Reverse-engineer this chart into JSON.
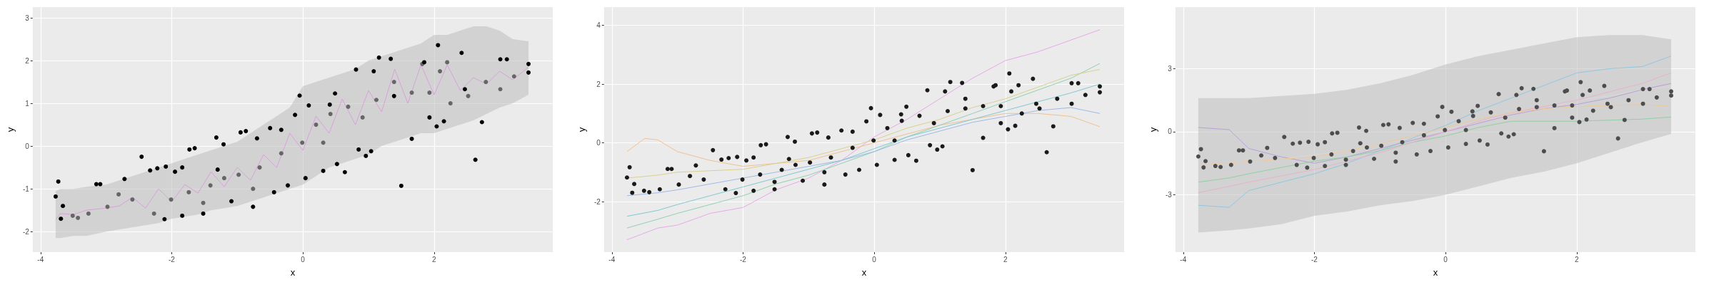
{
  "chart_data": [
    {
      "type": "scatter",
      "xlabel": "x",
      "ylabel": "y",
      "xlim": [
        -4.12,
        3.81
      ],
      "ylim": [
        -2.48,
        3.25
      ],
      "xticks": [
        -4,
        -2,
        0,
        2
      ],
      "yticks": [
        -2,
        -1,
        0,
        1,
        2,
        3
      ],
      "grid": true,
      "series": [
        {
          "type": "line",
          "color": "#d8a0dc",
          "x": [
            -3.77,
            -3.7,
            -3.5,
            -3.3,
            -3.0,
            -2.8,
            -2.6,
            -2.4,
            -2.2,
            -2.0,
            -1.8,
            -1.6,
            -1.4,
            -1.2,
            -1.0,
            -0.8,
            -0.6,
            -0.4,
            -0.2,
            0.0,
            0.2,
            0.4,
            0.6,
            0.8,
            1.0,
            1.2,
            1.4,
            1.6,
            1.8,
            2.0,
            2.2,
            2.4,
            2.6,
            2.8,
            3.0,
            3.2,
            3.44
          ],
          "values": [
            -1.72,
            -1.58,
            -1.6,
            -1.5,
            -1.45,
            -1.4,
            -1.2,
            -1.45,
            -1.0,
            -1.3,
            -0.9,
            -1.1,
            -0.6,
            -0.95,
            -0.5,
            -0.8,
            -0.2,
            -0.5,
            0.3,
            -0.1,
            0.7,
            0.3,
            1.1,
            0.5,
            1.3,
            0.8,
            1.8,
            1.0,
            1.9,
            1.2,
            1.9,
            1.3,
            1.6,
            1.45,
            1.75,
            1.55,
            1.85
          ],
          "lower": [
            -2.15,
            -2.15,
            -2.1,
            -2.1,
            -2.0,
            -1.95,
            -1.9,
            -1.85,
            -1.8,
            -1.7,
            -1.65,
            -1.6,
            -1.5,
            -1.45,
            -1.4,
            -1.3,
            -1.2,
            -1.1,
            -1.0,
            -0.9,
            -0.7,
            -0.5,
            -0.4,
            -0.3,
            -0.2,
            0.0,
            0.1,
            0.2,
            0.3,
            0.3,
            0.4,
            0.5,
            0.6,
            0.75,
            0.9,
            1.0,
            1.2
          ],
          "upper": [
            -1.05,
            -1.0,
            -1.0,
            -0.95,
            -0.9,
            -0.8,
            -0.7,
            -0.6,
            -0.5,
            -0.4,
            -0.3,
            -0.2,
            -0.1,
            0.0,
            0.1,
            0.3,
            0.5,
            0.7,
            0.9,
            1.4,
            1.5,
            1.6,
            1.7,
            1.8,
            2.0,
            2.1,
            2.2,
            2.3,
            2.4,
            2.6,
            2.6,
            2.7,
            2.8,
            2.8,
            2.7,
            2.5,
            2.45
          ]
        },
        {
          "marker": "circle",
          "color": "#666666",
          "x": [
            -3.51,
            -3.43,
            -3.27,
            -2.98,
            -2.81,
            -2.6,
            -2.27,
            -2.01,
            -1.74,
            -1.41,
            -1.2,
            -0.98,
            -0.66,
            -0.33,
            -0.01,
            0.2,
            0.42,
            0.69,
            0.91,
            1.12,
            1.39,
            1.66,
            1.82,
            2.09,
            2.25,
            2.52,
            2.79,
            3.01,
            3.22,
            -1.52,
            -0.76,
            0.31,
            1.93,
            2.2
          ],
          "values": [
            -1.63,
            -1.68,
            -1.58,
            -1.42,
            -1.13,
            -1.25,
            -1.58,
            -1.25,
            -1.08,
            -0.92,
            -0.75,
            -0.67,
            -0.5,
            -0.17,
            0.08,
            0.5,
            0.75,
            0.92,
            0.67,
            1.08,
            1.5,
            1.25,
            1.92,
            1.75,
            1.0,
            1.17,
            1.5,
            1.33,
            1.63,
            -1.33,
            -1.0,
            0.08,
            1.25,
            1.96
          ]
        },
        {
          "marker": "circle",
          "color": "#000000",
          "x": [
            -3.77,
            -3.73,
            -3.69,
            -3.66,
            -3.15,
            -3.09,
            -2.46,
            -2.72,
            -2.33,
            -2.22,
            -2.09,
            -1.95,
            -1.84,
            -1.73,
            -1.65,
            -1.32,
            -1.21,
            -0.95,
            -0.87,
            -0.7,
            -0.5,
            -0.33,
            -0.12,
            -0.05,
            0.09,
            0.41,
            0.49,
            0.64,
            0.81,
            0.96,
            1.04,
            1.08,
            1.16,
            1.34,
            1.5,
            1.85,
            2.06,
            2.15,
            2.42,
            2.63,
            2.73,
            3.01,
            3.11,
            3.44,
            3.44,
            -1.3,
            -0.76,
            -0.44,
            -0.23,
            0.04,
            0.31,
            0.52,
            0.85,
            1.93,
            2.04,
            -2.11,
            -1.84,
            -1.52,
            -1.09,
            1.39,
            1.66,
            2.47
          ],
          "values": [
            -1.18,
            -0.83,
            -1.7,
            -1.4,
            -0.89,
            -0.89,
            -0.25,
            -0.77,
            -0.57,
            -0.52,
            -0.48,
            -0.6,
            -0.5,
            -0.08,
            -0.05,
            0.2,
            0.04,
            0.32,
            0.35,
            0.18,
            0.42,
            0.38,
            0.73,
            1.18,
            0.95,
            0.97,
            1.23,
            -0.61,
            1.79,
            -0.23,
            -0.12,
            1.75,
            2.07,
            2.04,
            -0.93,
            1.96,
            2.36,
            0.58,
            2.18,
            -0.32,
            0.56,
            2.03,
            2.03,
            1.92,
            1.72,
            -0.55,
            -1.42,
            -1.08,
            -0.92,
            -0.75,
            -0.58,
            -0.42,
            -0.08,
            0.67,
            0.46,
            -1.71,
            -1.63,
            -1.58,
            -1.29,
            1.17,
            0.17,
            1.33
          ]
        }
      ]
    },
    {
      "type": "scatter",
      "xlabel": "x",
      "ylabel": "y",
      "xlim": [
        -4.12,
        3.81
      ],
      "ylim": [
        -3.72,
        4.62
      ],
      "xticks": [
        -4,
        -2,
        0,
        2
      ],
      "yticks": [
        -2,
        0,
        2,
        4
      ],
      "grid": true,
      "series": [
        {
          "type": "line",
          "color": "#e6a8e6",
          "x": [
            -3.77,
            -3.3,
            -3.0,
            -2.5,
            -2.0,
            -1.5,
            -1.0,
            -0.5,
            0.0,
            0.5,
            1.0,
            1.5,
            2.0,
            2.5,
            3.0,
            3.44
          ],
          "values": [
            -3.3,
            -2.9,
            -2.8,
            -2.4,
            -2.2,
            -1.6,
            -1.2,
            -0.6,
            0.2,
            0.8,
            1.5,
            2.2,
            2.8,
            3.1,
            3.5,
            3.85
          ]
        },
        {
          "type": "line",
          "color": "#f0c090",
          "x": [
            -3.77,
            -3.5,
            -3.3,
            -3.0,
            -2.5,
            -2.0,
            -1.5,
            -1.0,
            -0.5,
            0.0,
            0.5,
            1.0,
            1.5,
            2.0,
            2.5,
            3.0,
            3.44
          ],
          "values": [
            -0.3,
            0.15,
            0.1,
            -0.3,
            -0.6,
            -0.8,
            -0.7,
            -0.6,
            -0.3,
            0.0,
            0.3,
            0.6,
            0.8,
            1.0,
            1.0,
            0.9,
            0.55
          ]
        },
        {
          "type": "line",
          "color": "#90d0b0",
          "x": [
            -3.77,
            -3.3,
            -3.0,
            -2.5,
            -2.0,
            -1.5,
            -1.0,
            -0.5,
            0.0,
            0.5,
            1.0,
            1.5,
            2.0,
            2.5,
            3.0,
            3.44
          ],
          "values": [
            -2.9,
            -2.6,
            -2.4,
            -2.1,
            -1.8,
            -1.4,
            -1.1,
            -0.7,
            -0.3,
            0.2,
            0.6,
            1.0,
            1.4,
            1.8,
            2.2,
            2.7
          ]
        },
        {
          "type": "line",
          "color": "#80c8d0",
          "x": [
            -3.77,
            -3.3,
            -3.0,
            -2.5,
            -2.0,
            -1.5,
            -1.0,
            -0.5,
            0.0,
            0.5,
            1.0,
            1.5,
            2.0,
            2.5,
            3.0,
            3.44
          ],
          "values": [
            -2.5,
            -2.3,
            -2.1,
            -1.8,
            -1.5,
            -1.2,
            -0.9,
            -0.6,
            -0.2,
            0.2,
            0.5,
            0.8,
            1.1,
            1.4,
            1.7,
            2.0
          ]
        },
        {
          "type": "line",
          "color": "#a0b8e8",
          "x": [
            -3.77,
            -3.3,
            -3.0,
            -2.5,
            -2.0,
            -1.5,
            -1.0,
            -0.5,
            0.0,
            0.5,
            1.0,
            1.5,
            2.0,
            2.5,
            3.0,
            3.44
          ],
          "values": [
            -1.8,
            -1.7,
            -1.6,
            -1.4,
            -1.2,
            -1.0,
            -0.8,
            -0.6,
            -0.3,
            0.1,
            0.4,
            0.7,
            0.9,
            1.1,
            1.2,
            1.0
          ]
        },
        {
          "type": "line",
          "color": "#d8d090",
          "x": [
            -3.77,
            -3.3,
            -3.0,
            -2.5,
            -2.0,
            -1.5,
            -1.0,
            -0.5,
            0.0,
            0.5,
            1.0,
            1.5,
            2.0,
            2.5,
            3.0,
            3.44
          ],
          "values": [
            -1.2,
            -1.1,
            -1.0,
            -0.95,
            -0.9,
            -0.7,
            -0.5,
            -0.2,
            0.1,
            0.5,
            0.8,
            1.2,
            1.5,
            1.9,
            2.3,
            2.5
          ]
        },
        {
          "marker": "circle",
          "color": "#1a1a1a",
          "x": [
            -3.51,
            -3.43,
            -3.27,
            -2.98,
            -2.81,
            -2.6,
            -2.27,
            -2.01,
            -1.74,
            -1.41,
            -1.2,
            -0.98,
            -0.66,
            -0.33,
            -0.01,
            0.2,
            0.42,
            0.69,
            0.91,
            1.12,
            1.39,
            1.66,
            1.82,
            2.09,
            2.25,
            2.52,
            2.79,
            3.01,
            3.22,
            -1.52,
            -0.76,
            0.31,
            1.93,
            2.2,
            -3.77,
            -3.73,
            -3.69,
            -3.66,
            -3.15,
            -3.09,
            -2.46,
            -2.72,
            -2.33,
            -2.22,
            -2.09,
            -1.95,
            -1.84,
            -1.73,
            -1.65,
            -1.32,
            -1.21,
            -0.95,
            -0.87,
            -0.7,
            -0.5,
            -0.33,
            -0.12,
            -0.05,
            0.09,
            0.41,
            0.49,
            0.64,
            0.81,
            0.96,
            1.04,
            1.08,
            1.16,
            1.34,
            1.5,
            1.85,
            2.06,
            2.15,
            2.42,
            2.63,
            2.73,
            3.01,
            3.11,
            3.44,
            3.44,
            -1.3,
            -0.76,
            -0.44,
            -0.23,
            0.04,
            0.31,
            0.52,
            0.85,
            1.93,
            2.04,
            -2.11,
            -1.84,
            -1.52,
            -1.09,
            1.39,
            1.66,
            2.47
          ],
          "values": [
            -1.63,
            -1.68,
            -1.58,
            -1.42,
            -1.13,
            -1.25,
            -1.58,
            -1.25,
            -1.08,
            -0.92,
            -0.75,
            -0.67,
            -0.5,
            -0.17,
            0.08,
            0.5,
            0.75,
            0.92,
            0.67,
            1.08,
            1.5,
            1.25,
            1.92,
            1.75,
            1.0,
            1.17,
            1.5,
            1.33,
            1.63,
            -1.33,
            -1.0,
            0.08,
            1.25,
            1.96,
            -1.18,
            -0.83,
            -1.7,
            -1.4,
            -0.89,
            -0.89,
            -0.25,
            -0.77,
            -0.57,
            -0.52,
            -0.48,
            -0.6,
            -0.5,
            -0.08,
            -0.05,
            0.2,
            0.04,
            0.32,
            0.35,
            0.18,
            0.42,
            0.38,
            0.73,
            1.18,
            0.95,
            0.97,
            1.23,
            -0.61,
            1.79,
            -0.23,
            -0.12,
            1.75,
            2.07,
            2.04,
            -0.93,
            1.96,
            2.36,
            0.58,
            2.18,
            -0.32,
            0.56,
            2.03,
            2.03,
            1.92,
            1.72,
            -0.55,
            -1.42,
            -1.08,
            -0.92,
            -0.75,
            -0.58,
            -0.42,
            -0.08,
            0.67,
            0.46,
            -1.71,
            -1.63,
            -1.58,
            -1.29,
            1.17,
            0.17,
            1.33
          ]
        }
      ]
    },
    {
      "type": "scatter",
      "xlabel": "x",
      "ylabel": "y",
      "xlim": [
        -4.12,
        3.81
      ],
      "ylim": [
        -5.73,
        5.93
      ],
      "xticks": [
        -4,
        -2,
        0,
        2
      ],
      "yticks": [
        -3,
        0,
        3
      ],
      "grid": true,
      "series": [
        {
          "type": "line",
          "color": "#d9d9d9",
          "x": [
            -3.77,
            -3.3,
            -3.0,
            -2.5,
            -2.0,
            -1.5,
            -1.0,
            -0.5,
            0.0,
            0.5,
            1.0,
            1.5,
            2.0,
            2.5,
            3.0,
            3.44
          ],
          "values": [
            -1.6,
            -1.5,
            -1.4,
            -1.3,
            -1.1,
            -0.9,
            -0.6,
            -0.3,
            0.1,
            0.5,
            0.8,
            1.1,
            1.5,
            1.7,
            2.0,
            2.15
          ],
          "lower": [
            -4.8,
            -4.7,
            -4.6,
            -4.4,
            -4.0,
            -3.8,
            -3.5,
            -3.3,
            -3.0,
            -2.6,
            -2.2,
            -1.9,
            -1.5,
            -1.0,
            -0.5,
            -0.1
          ],
          "upper": [
            1.6,
            1.6,
            1.6,
            1.7,
            1.8,
            2.0,
            2.3,
            2.7,
            3.2,
            3.6,
            3.9,
            4.2,
            4.5,
            4.6,
            4.6,
            4.4
          ]
        },
        {
          "type": "line",
          "color": "#8ec8e0",
          "x": [
            -3.77,
            -3.3,
            -3.0,
            -2.5,
            -2.0,
            -1.5,
            -1.0,
            -0.5,
            0.0,
            0.5,
            1.0,
            1.5,
            2.0,
            2.5,
            3.0,
            3.44
          ],
          "values": [
            -3.5,
            -3.6,
            -2.8,
            -2.4,
            -2.0,
            -1.5,
            -0.9,
            -0.3,
            0.3,
            1.0,
            1.6,
            2.2,
            2.8,
            3.0,
            3.1,
            3.6
          ]
        },
        {
          "type": "line",
          "color": "#b8a0d8",
          "x": [
            -3.77,
            -3.3,
            -3.0,
            -2.5,
            -2.0,
            -1.5,
            -1.0,
            -0.5,
            0.0,
            0.5,
            1.0,
            1.5,
            2.0,
            2.5,
            3.0,
            3.44
          ],
          "values": [
            0.2,
            0.1,
            -0.8,
            -1.2,
            -1.5,
            -1.2,
            -0.8,
            -0.4,
            0.0,
            0.4,
            0.8,
            1.1,
            1.3,
            1.6,
            2.0,
            2.3
          ]
        },
        {
          "type": "line",
          "color": "#90d0a0",
          "x": [
            -3.77,
            -3.3,
            -3.0,
            -2.5,
            -2.0,
            -1.5,
            -1.0,
            -0.5,
            0.0,
            0.5,
            1.0,
            1.5,
            2.0,
            2.5,
            3.0,
            3.44
          ],
          "values": [
            -2.4,
            -2.2,
            -2.0,
            -1.7,
            -1.4,
            -1.2,
            -0.9,
            -0.5,
            -0.2,
            0.2,
            0.5,
            0.5,
            0.5,
            0.55,
            0.6,
            0.7
          ]
        },
        {
          "type": "line",
          "color": "#e8b0d0",
          "x": [
            -3.77,
            -3.3,
            -3.0,
            -2.5,
            -2.0,
            -1.5,
            -1.0,
            -0.5,
            0.0,
            0.5,
            1.0,
            1.5,
            2.0,
            2.5,
            3.0,
            3.44
          ],
          "values": [
            -2.9,
            -2.6,
            -2.4,
            -2.1,
            -1.8,
            -1.4,
            -1.0,
            -0.5,
            0.0,
            0.5,
            0.9,
            1.2,
            1.5,
            1.9,
            2.3,
            2.8
          ]
        },
        {
          "type": "line",
          "color": "#f0c898",
          "x": [
            -3.77,
            -3.3,
            -3.0,
            -2.5,
            -2.0,
            -1.5,
            -1.0,
            -0.5,
            0.0,
            0.5,
            1.0,
            1.5,
            2.0,
            2.5,
            3.0,
            3.44
          ],
          "values": [
            -1.6,
            -1.5,
            -1.4,
            -1.3,
            -1.2,
            -0.9,
            -0.6,
            -0.2,
            0.2,
            0.6,
            0.9,
            1.1,
            1.2,
            1.25,
            1.3,
            1.2
          ]
        },
        {
          "marker": "circle",
          "color": "#4d4d4d",
          "x": [
            -3.51,
            -3.43,
            -3.27,
            -2.98,
            -2.81,
            -2.6,
            -2.27,
            -2.01,
            -1.74,
            -1.41,
            -1.2,
            -0.98,
            -0.66,
            -0.33,
            -0.01,
            0.2,
            0.42,
            0.69,
            0.91,
            1.12,
            1.39,
            1.66,
            1.82,
            2.09,
            2.25,
            2.52,
            2.79,
            3.01,
            3.22,
            -1.52,
            -0.76,
            0.31,
            1.93,
            2.2,
            -3.77,
            -3.73,
            -3.69,
            -3.66,
            -3.15,
            -3.09,
            -2.46,
            -2.72,
            -2.33,
            -2.22,
            -2.09,
            -1.95,
            -1.84,
            -1.73,
            -1.65,
            -1.32,
            -1.21,
            -0.95,
            -0.87,
            -0.7,
            -0.5,
            -0.33,
            -0.12,
            -0.05,
            0.09,
            0.41,
            0.49,
            0.64,
            0.81,
            0.96,
            1.04,
            1.08,
            1.16,
            1.34,
            1.5,
            1.85,
            2.06,
            2.15,
            2.42,
            2.63,
            2.73,
            3.01,
            3.11,
            3.44,
            3.44,
            -1.3,
            -0.76,
            -0.44,
            -0.23,
            0.04,
            0.31,
            0.52,
            0.85,
            1.93,
            2.04,
            -2.11,
            -1.84,
            -1.52,
            -1.09,
            1.39,
            1.66,
            2.47
          ],
          "values": [
            -1.63,
            -1.68,
            -1.58,
            -1.42,
            -1.13,
            -1.25,
            -1.58,
            -1.25,
            -1.08,
            -0.92,
            -0.75,
            -0.67,
            -0.5,
            -0.17,
            0.08,
            0.5,
            0.75,
            0.92,
            0.67,
            1.08,
            1.5,
            1.25,
            1.92,
            1.75,
            1.0,
            1.17,
            1.5,
            1.33,
            1.63,
            -1.33,
            -1.0,
            0.08,
            1.25,
            1.96,
            -1.18,
            -0.83,
            -1.7,
            -1.4,
            -0.89,
            -0.89,
            -0.25,
            -0.77,
            -0.57,
            -0.52,
            -0.48,
            -0.6,
            -0.5,
            -0.08,
            -0.05,
            0.2,
            0.04,
            0.32,
            0.35,
            0.18,
            0.42,
            0.38,
            0.73,
            1.18,
            0.95,
            0.97,
            1.23,
            -0.61,
            1.79,
            -0.23,
            -0.12,
            1.75,
            2.07,
            2.04,
            -0.93,
            1.96,
            2.36,
            0.58,
            2.18,
            -0.32,
            0.56,
            2.03,
            2.03,
            1.92,
            1.72,
            -0.55,
            -1.42,
            -1.08,
            -0.92,
            -0.75,
            -0.58,
            -0.42,
            -0.08,
            0.67,
            0.46,
            -1.71,
            -1.63,
            -1.58,
            -1.29,
            1.17,
            0.17,
            1.33
          ]
        }
      ]
    }
  ]
}
